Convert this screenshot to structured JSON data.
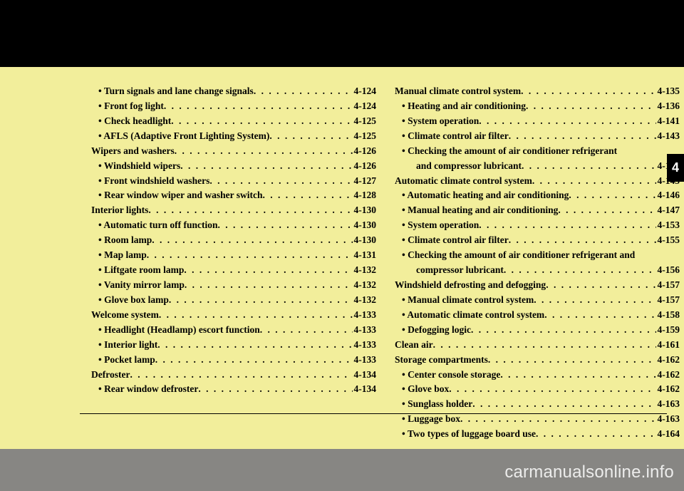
{
  "tab_number": "4",
  "watermark": "carmanualsonline.info",
  "left": [
    {
      "lvl": "sub",
      "label": "• Turn signals and lane change signals",
      "page": "4-124"
    },
    {
      "lvl": "sub",
      "label": "• Front fog light",
      "page": "4-124"
    },
    {
      "lvl": "sub",
      "label": "• Check headlight",
      "page": "4-125"
    },
    {
      "lvl": "sub",
      "label": "• AFLS (Adaptive Front Lighting System)",
      "page": "4-125"
    },
    {
      "lvl": "main",
      "label": "Wipers and washers",
      "page": "4-126"
    },
    {
      "lvl": "sub",
      "label": "• Windshield wipers",
      "page": "4-126"
    },
    {
      "lvl": "sub",
      "label": "• Front windshield washers",
      "page": "4-127"
    },
    {
      "lvl": "sub",
      "label": "• Rear window wiper and washer switch",
      "page": "4-128"
    },
    {
      "lvl": "main",
      "label": "Interior lights",
      "page": "4-130"
    },
    {
      "lvl": "sub",
      "label": "• Automatic turn off function",
      "page": "4-130"
    },
    {
      "lvl": "sub",
      "label": "• Room lamp",
      "page": "4-130"
    },
    {
      "lvl": "sub",
      "label": "• Map lamp",
      "page": "4-131"
    },
    {
      "lvl": "sub",
      "label": "• Liftgate room lamp",
      "page": "4-132"
    },
    {
      "lvl": "sub",
      "label": "• Vanity mirror lamp",
      "page": "4-132"
    },
    {
      "lvl": "sub",
      "label": "• Glove box lamp",
      "page": "4-132"
    },
    {
      "lvl": "main",
      "label": "Welcome system",
      "page": "4-133"
    },
    {
      "lvl": "sub",
      "label": "• Headlight (Headlamp) escort function",
      "page": "4-133"
    },
    {
      "lvl": "sub",
      "label": "• Interior light",
      "page": "4-133"
    },
    {
      "lvl": "sub",
      "label": "• Pocket lamp",
      "page": "4-133"
    },
    {
      "lvl": "main",
      "label": "Defroster",
      "page": "4-134"
    },
    {
      "lvl": "sub",
      "label": "• Rear window defroster",
      "page": "4-134"
    }
  ],
  "right": [
    {
      "lvl": "main",
      "label": "Manual climate control system",
      "page": "4-135"
    },
    {
      "lvl": "sub",
      "label": "• Heating and air conditioning",
      "page": "4-136"
    },
    {
      "lvl": "sub",
      "label": "• System operation",
      "page": "4-141"
    },
    {
      "lvl": "sub",
      "label": "• Climate control air filter",
      "page": "4-143"
    },
    {
      "lvl": "sub",
      "label": "• Checking the amount of air conditioner refrigerant",
      "page": ""
    },
    {
      "lvl": "sub2",
      "label": "and compressor lubricant",
      "page": "4-143"
    },
    {
      "lvl": "main",
      "label": "Automatic climate control system",
      "page": "4-145"
    },
    {
      "lvl": "sub",
      "label": "• Automatic heating and air conditioning",
      "page": "4-146"
    },
    {
      "lvl": "sub",
      "label": "• Manual heating and air conditioning",
      "page": "4-147"
    },
    {
      "lvl": "sub",
      "label": "• System operation",
      "page": "4-153"
    },
    {
      "lvl": "sub",
      "label": "• Climate control air filter",
      "page": "4-155"
    },
    {
      "lvl": "sub",
      "label": "• Checking the amount of air conditioner refrigerant and",
      "page": ""
    },
    {
      "lvl": "sub2",
      "label": "compressor lubricant",
      "page": "4-156"
    },
    {
      "lvl": "main",
      "label": "Windshield defrosting and defogging",
      "page": "4-157"
    },
    {
      "lvl": "sub",
      "label": "• Manual climate control system",
      "page": "4-157"
    },
    {
      "lvl": "sub",
      "label": "• Automatic climate control system",
      "page": "4-158"
    },
    {
      "lvl": "sub",
      "label": "• Defogging logic",
      "page": "4-159"
    },
    {
      "lvl": "main",
      "label": "Clean air",
      "page": "4-161"
    },
    {
      "lvl": "main",
      "label": "Storage compartments",
      "page": "4-162"
    },
    {
      "lvl": "sub",
      "label": "• Center console storage",
      "page": "4-162"
    },
    {
      "lvl": "sub",
      "label": "• Glove box",
      "page": "4-162"
    },
    {
      "lvl": "sub",
      "label": "• Sunglass holder",
      "page": "4-163"
    },
    {
      "lvl": "sub",
      "label": "• Luggage box",
      "page": "4-163"
    },
    {
      "lvl": "sub",
      "label": "• Two types of luggage board use",
      "page": "4-164"
    }
  ]
}
